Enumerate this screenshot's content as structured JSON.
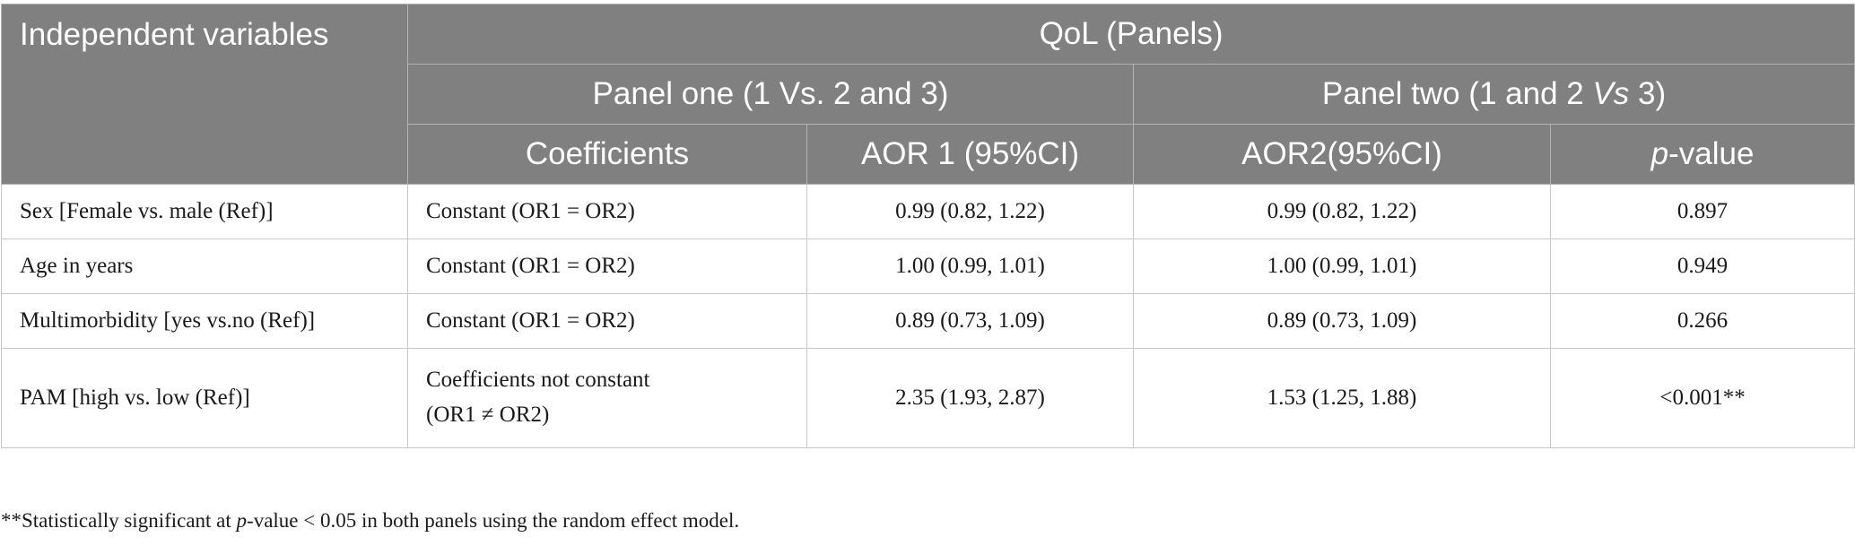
{
  "table": {
    "header": {
      "independent_variables": "Independent variables",
      "qol_panels": "QoL (Panels)",
      "panel_one": "Panel one (1 Vs. 2 and 3)",
      "panel_two_pre": "Panel two (1 and 2 ",
      "panel_two_vs": "Vs",
      "panel_two_post": " 3)",
      "coefficients": "Coefficients",
      "aor1": "AOR 1 (95%CI)",
      "aor2": "AOR2(95%CI)",
      "p_italic": "p",
      "p_rest": "-value"
    },
    "rows": [
      {
        "variable": "Sex [Female vs. male (Ref)]",
        "coefficients": "Constant (OR1 = OR2)",
        "aor1": "0.99 (0.82, 1.22)",
        "aor2": "0.99 (0.82, 1.22)",
        "p_value": "0.897"
      },
      {
        "variable": "Age in years",
        "coefficients": "Constant (OR1 = OR2)",
        "aor1": "1.00 (0.99, 1.01)",
        "aor2": "1.00 (0.99, 1.01)",
        "p_value": "0.949"
      },
      {
        "variable": "Multimorbidity [yes vs.no (Ref)]",
        "coefficients": "Constant (OR1 = OR2)",
        "aor1": "0.89 (0.73, 1.09)",
        "aor2": "0.89 (0.73, 1.09)",
        "p_value": "0.266"
      },
      {
        "variable": "PAM [high vs. low (Ref)]",
        "coefficients_line1": "Coefficients not constant",
        "coefficients_line2": "(OR1 ≠ OR2)",
        "aor1": "2.35 (1.93, 2.87)",
        "aor2": "1.53 (1.25, 1.88)",
        "p_value": "<0.001**"
      }
    ]
  },
  "footnote": {
    "pre": "**Statistically significant at ",
    "italic": "p",
    "post": "-value < 0.05 in both panels using the random effect model."
  }
}
